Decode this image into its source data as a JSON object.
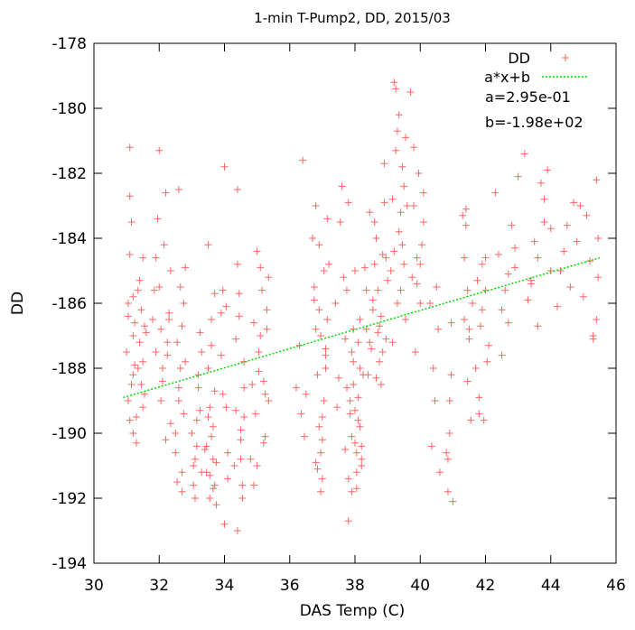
{
  "chart_data": {
    "type": "scatter",
    "title": "1-min T-Pump2, DD, 2015/03",
    "xlabel": "DAS Temp (C)",
    "ylabel": "DD",
    "xlim": [
      30,
      46
    ],
    "ylim": [
      -194,
      -178
    ],
    "xticks": [
      "30",
      "32",
      "34",
      "36",
      "38",
      "40",
      "42",
      "44",
      "46"
    ],
    "yticks": [
      "-194",
      "-192",
      "-190",
      "-188",
      "-186",
      "-184",
      "-182",
      "-180",
      "-178"
    ],
    "grid": false,
    "legend_position": "top-right",
    "series": [
      {
        "name": "DD",
        "marker": "plus",
        "color": "#ff6666",
        "x": [
          31.0,
          31.05,
          31.05,
          31.1,
          31.1,
          31.15,
          31.2,
          31.2,
          31.25,
          31.3,
          31.35,
          31.4,
          31.45,
          31.5,
          31.5,
          31.55,
          31.6,
          31.1,
          31.15,
          31.2,
          31.3,
          31.4,
          31.5,
          31.2,
          31.05,
          31.35,
          31.45,
          31.1,
          31.25,
          31.55,
          31.8,
          31.85,
          31.9,
          31.95,
          32.0,
          32.05,
          32.1,
          32.15,
          32.2,
          32.25,
          32.3,
          32.35,
          32.0,
          32.1,
          32.2,
          32.3,
          31.9,
          32.05,
          32.25,
          32.35,
          32.5,
          32.55,
          32.6,
          32.65,
          32.7,
          32.75,
          32.8,
          32.5,
          32.6,
          32.7,
          32.55,
          32.65,
          32.75,
          32.6,
          32.7,
          32.8,
          33.0,
          33.05,
          33.1,
          33.15,
          33.2,
          33.25,
          33.3,
          33.1,
          33.2,
          33.3,
          33.15,
          33.05,
          33.25,
          33.4,
          33.45,
          33.5,
          33.55,
          33.6,
          33.65,
          33.7,
          33.75,
          33.5,
          33.6,
          33.7,
          33.55,
          33.65,
          33.45,
          33.75,
          33.6,
          33.5,
          33.7,
          33.55,
          33.65,
          33.9,
          33.95,
          34.0,
          34.05,
          34.1,
          34.0,
          33.9,
          34.05,
          33.95,
          34.1,
          34.3,
          34.35,
          34.4,
          34.45,
          34.5,
          34.55,
          34.6,
          34.4,
          34.5,
          34.6,
          34.45,
          34.55,
          34.35,
          34.5,
          34.4,
          34.6,
          34.8,
          34.85,
          34.9,
          34.95,
          35.0,
          35.05,
          35.1,
          35.15,
          35.2,
          35.25,
          35.3,
          35.35,
          35.0,
          35.1,
          35.2,
          35.3,
          34.9,
          35.05,
          35.25,
          35.35,
          36.2,
          36.3,
          36.4,
          36.5,
          36.45,
          36.35,
          36.7,
          36.75,
          36.8,
          36.85,
          36.9,
          36.95,
          37.0,
          37.05,
          37.1,
          37.15,
          37.2,
          36.8,
          36.9,
          37.0,
          37.1,
          36.75,
          36.85,
          36.95,
          37.05,
          37.15,
          36.8,
          36.9,
          37.0,
          37.1,
          36.95,
          37.4,
          37.5,
          37.6,
          37.7,
          37.45,
          37.55,
          37.65,
          37.7,
          37.75,
          37.8,
          37.85,
          37.9,
          37.95,
          38.0,
          38.05,
          38.1,
          38.15,
          38.2,
          38.25,
          37.8,
          37.9,
          38.0,
          38.1,
          38.2,
          37.85,
          37.95,
          38.05,
          38.15,
          37.75,
          37.9,
          38.0,
          38.1,
          38.2,
          37.8,
          37.95,
          38.05,
          38.15,
          38.3,
          38.35,
          38.4,
          38.45,
          38.35,
          38.45,
          38.5,
          38.55,
          38.6,
          38.65,
          38.7,
          38.75,
          38.8,
          38.85,
          38.9,
          38.95,
          39.0,
          38.6,
          38.7,
          38.8,
          38.9,
          38.55,
          38.65,
          38.75,
          38.85,
          38.95,
          39.1,
          39.15,
          39.2,
          39.25,
          39.3,
          39.35,
          39.4,
          39.45,
          39.5,
          39.55,
          39.6,
          39.2,
          39.3,
          39.4,
          39.5,
          39.15,
          39.25,
          39.35,
          39.45,
          39.55,
          39.7,
          39.75,
          39.8,
          39.85,
          39.9,
          39.95,
          40.0,
          40.05,
          40.1,
          39.8,
          39.9,
          40.0,
          40.1,
          40.3,
          40.4,
          40.5,
          40.6,
          40.35,
          40.45,
          40.55,
          40.8,
          40.85,
          40.9,
          40.95,
          41.0,
          40.85,
          40.9,
          40.95,
          41.3,
          41.35,
          41.4,
          41.45,
          41.5,
          41.55,
          41.6,
          41.4,
          41.5,
          41.35,
          41.45,
          41.7,
          41.75,
          41.8,
          41.85,
          41.9,
          41.95,
          42.0,
          42.05,
          42.1,
          41.8,
          41.9,
          42.0,
          42.3,
          42.4,
          42.5,
          42.6,
          42.7,
          42.8,
          42.9,
          43.0,
          42.5,
          42.7,
          42.9,
          43.2,
          43.3,
          43.4,
          43.5,
          43.6,
          43.7,
          43.8,
          43.9,
          44.0,
          43.4,
          43.6,
          43.8,
          44.0,
          44.2,
          44.3,
          44.4,
          44.5,
          44.6,
          44.7,
          44.8,
          44.9,
          45.0,
          45.1,
          45.2,
          45.3,
          45.4,
          45.45,
          45.45,
          45.4,
          45.3
        ],
        "y": [
          -187.5,
          -186.0,
          -189.0,
          -182.7,
          -184.5,
          -188.5,
          -185.8,
          -190.0,
          -186.6,
          -189.5,
          -188.0,
          -187.2,
          -186.2,
          -187.8,
          -184.6,
          -188.8,
          -186.9,
          -181.2,
          -183.5,
          -188.2,
          -190.3,
          -185.3,
          -189.2,
          -187.0,
          -186.4,
          -185.6,
          -188.5,
          -189.6,
          -187.9,
          -186.7,
          -186.5,
          -185.6,
          -187.5,
          -183.4,
          -181.3,
          -186.8,
          -188.4,
          -184.2,
          -182.6,
          -187.6,
          -186.3,
          -189.7,
          -185.5,
          -188.0,
          -190.2,
          -186.5,
          -184.6,
          -189.0,
          -187.2,
          -185.0,
          -190.6,
          -191.5,
          -189.0,
          -188.0,
          -191.2,
          -186.0,
          -184.9,
          -190.0,
          -182.5,
          -191.8,
          -187.2,
          -185.5,
          -189.4,
          -188.6,
          -186.7,
          -187.8,
          -190.0,
          -191.6,
          -190.8,
          -189.6,
          -188.2,
          -186.9,
          -191.2,
          -192.0,
          -188.6,
          -187.5,
          -190.4,
          -191.0,
          -189.3,
          -190.5,
          -191.2,
          -189.5,
          -192.0,
          -190.1,
          -191.7,
          -188.7,
          -190.9,
          -184.2,
          -187.3,
          -185.7,
          -191.3,
          -189.8,
          -190.4,
          -192.2,
          -186.5,
          -188.0,
          -191.6,
          -189.2,
          -190.8,
          -186.3,
          -185.6,
          -181.8,
          -189.2,
          -190.6,
          -192.8,
          -187.6,
          -186.1,
          -188.8,
          -191.4,
          -191.0,
          -189.3,
          -182.5,
          -186.4,
          -190.2,
          -191.6,
          -187.8,
          -184.8,
          -189.9,
          -188.6,
          -185.7,
          -192.0,
          -187.1,
          -190.8,
          -193.0,
          -189.5,
          -190.8,
          -188.5,
          -186.6,
          -189.4,
          -184.4,
          -188.1,
          -187.0,
          -185.6,
          -190.3,
          -188.8,
          -186.2,
          -189.0,
          -191.0,
          -184.9,
          -188.4,
          -186.8,
          -191.6,
          -187.5,
          -190.1,
          -185.2,
          -188.6,
          -187.3,
          -181.6,
          -188.8,
          -190.1,
          -189.4,
          -184.0,
          -185.5,
          -186.8,
          -188.2,
          -189.8,
          -190.6,
          -191.4,
          -185.0,
          -187.6,
          -183.4,
          -184.8,
          -190.9,
          -186.2,
          -189.5,
          -188.0,
          -185.9,
          -191.1,
          -187.0,
          -189.0,
          -186.5,
          -183.0,
          -184.2,
          -190.2,
          -187.4,
          -191.8,
          -186.0,
          -188.3,
          -182.4,
          -187.1,
          -189.2,
          -183.5,
          -185.2,
          -190.5,
          -188.6,
          -191.4,
          -189.0,
          -190.1,
          -187.8,
          -185.0,
          -191.7,
          -189.6,
          -186.5,
          -190.8,
          -188.2,
          -192.7,
          -187.5,
          -190.3,
          -188.9,
          -191.0,
          -189.4,
          -186.8,
          -190.6,
          -188.0,
          -185.6,
          -191.8,
          -189.3,
          -187.2,
          -190.4,
          -182.9,
          -188.5,
          -191.2,
          -189.8,
          -184.9,
          -186.8,
          -188.2,
          -187.2,
          -185.6,
          -183.2,
          -187.4,
          -186.2,
          -184.8,
          -188.3,
          -185.6,
          -187.8,
          -186.4,
          -184.5,
          -181.7,
          -187.1,
          -185.3,
          -183.5,
          -186.9,
          -188.5,
          -182.9,
          -185.9,
          -184.0,
          -186.7,
          -187.5,
          -184.6,
          -185.0,
          -182.8,
          -184.4,
          -179.4,
          -186.0,
          -180.2,
          -183.2,
          -181.8,
          -184.8,
          -186.5,
          -183.0,
          -179.2,
          -180.7,
          -185.6,
          -182.4,
          -187.2,
          -181.3,
          -183.8,
          -184.2,
          -180.9,
          -179.5,
          -185.2,
          -183.0,
          -187.5,
          -184.6,
          -182.0,
          -186.0,
          -184.2,
          -183.5,
          -181.2,
          -185.4,
          -184.8,
          -182.6,
          -186.0,
          -188.0,
          -185.5,
          -191.2,
          -190.4,
          -189.0,
          -186.8,
          -190.6,
          -191.8,
          -189.0,
          -188.2,
          -192.1,
          -190.8,
          -190.0,
          -186.6,
          -183.3,
          -186.5,
          -183.6,
          -185.6,
          -187.1,
          -189.6,
          -186.0,
          -183.1,
          -186.8,
          -184.6,
          -188.4,
          -188.0,
          -185.3,
          -189.4,
          -186.7,
          -184.8,
          -189.6,
          -185.6,
          -187.8,
          -187.3,
          -188.9,
          -186.2,
          -184.6,
          -182.6,
          -184.5,
          -187.6,
          -185.6,
          -186.6,
          -183.6,
          -184.3,
          -182.1,
          -186.2,
          -185.1,
          -184.9,
          -181.4,
          -185.9,
          -185.4,
          -184.1,
          -186.7,
          -182.3,
          -183.5,
          -181.9,
          -183.7,
          -185.3,
          -184.6,
          -182.8,
          -185.0,
          -186.1,
          -185.0,
          -184.4,
          -183.6,
          -185.5,
          -182.9,
          -184.1,
          -183.0,
          -185.8,
          -183.3,
          -184.7,
          -187.0,
          -186.5,
          -185.2,
          -184.0,
          -182.2,
          -187.1
        ]
      },
      {
        "name": "a*x+b",
        "type": "line",
        "style": "dotted",
        "color": "#00dd00",
        "x": [
          30.9,
          45.5
        ],
        "y": [
          -188.9,
          -184.6
        ]
      }
    ],
    "annotations": [
      "a=2.95e-01",
      "b=-1.98e+02"
    ]
  }
}
